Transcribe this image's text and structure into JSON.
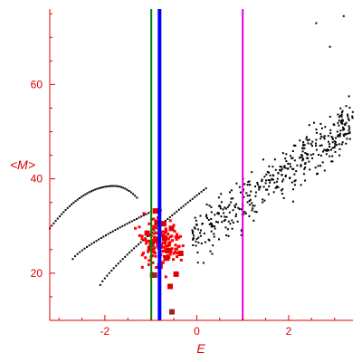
{
  "chart_data": {
    "type": "scatter",
    "xlabel": "E",
    "ylabel": "<M>",
    "xlim": [
      -3.2,
      3.4
    ],
    "ylim": [
      10,
      76
    ],
    "x_ticks": [
      -2,
      0,
      2
    ],
    "y_ticks": [
      20,
      40,
      60
    ],
    "colors": {
      "axis": "#e00000",
      "black_points": "#000000",
      "red_points": "#ff0000",
      "red_large": "#e00000",
      "dark_points": "#a02020",
      "green_line": "#008000",
      "blue_line": "#0000ff",
      "magenta_line": "#dd00dd"
    },
    "vertical_lines": [
      {
        "x": -0.99,
        "color": "#008000",
        "width": 2
      },
      {
        "x": -0.81,
        "color": "#0000ff",
        "width": 4
      },
      {
        "x": 1.0,
        "color": "#dd00dd",
        "width": 2
      }
    ],
    "lower_curve": {
      "x_start": -2.1,
      "x_end": 0.2,
      "y_start": 17.5,
      "y_end": 38.0,
      "count": 48
    },
    "upper_arc": {
      "x_start": -3.2,
      "x_peak": -1.8,
      "x_end": -1.3,
      "y_start": 29.5,
      "y_peak": 38.5,
      "y_end": 36.0,
      "count": 45
    },
    "middle_curve": {
      "x_start": -2.7,
      "x_end": -1.0,
      "y_start": 23.0,
      "y_end": 33.0,
      "count": 34
    },
    "black_cloud": {
      "x_range": [
        -0.1,
        3.4
      ],
      "slope": 7.1,
      "intercept": 28.0,
      "spread": 4.5,
      "count": 420
    },
    "red_cloud": {
      "center": [
        -0.75,
        26
      ],
      "sx": 0.35,
      "sy": 4.5,
      "count": 150
    },
    "large_red_points": [
      {
        "x": -0.87,
        "y": 30.8
      },
      {
        "x": -0.72,
        "y": 30.5
      },
      {
        "x": -0.86,
        "y": 27.2
      },
      {
        "x": -0.7,
        "y": 27.4
      },
      {
        "x": -0.62,
        "y": 24.8
      },
      {
        "x": -1.02,
        "y": 25.2
      },
      {
        "x": -0.96,
        "y": 19.6
      },
      {
        "x": -0.8,
        "y": 21.5
      },
      {
        "x": -0.65,
        "y": 23.2
      },
      {
        "x": -0.45,
        "y": 19.8
      },
      {
        "x": -0.55,
        "y": 29.5
      },
      {
        "x": -0.9,
        "y": 33.2
      },
      {
        "x": -0.35,
        "y": 24.2
      },
      {
        "x": -0.58,
        "y": 17.2
      },
      {
        "x": -1.08,
        "y": 28.5
      }
    ],
    "dark_points": [
      {
        "x": -0.92,
        "y": 19.6
      },
      {
        "x": -0.98,
        "y": 26.2
      },
      {
        "x": -0.54,
        "y": 11.8
      }
    ]
  }
}
